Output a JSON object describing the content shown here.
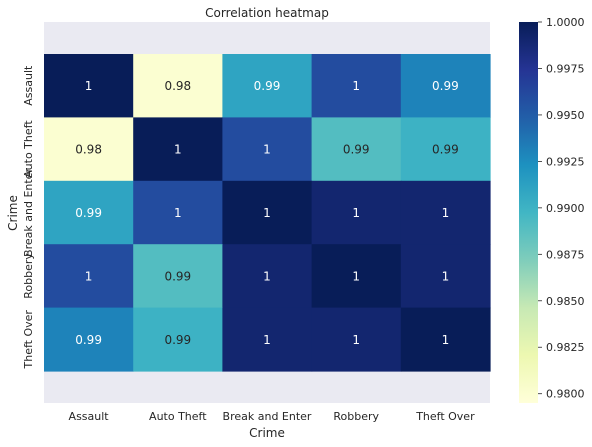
{
  "chart_data": {
    "type": "heatmap",
    "title": "Correlation heatmap",
    "xlabel": "Crime",
    "ylabel": "Crime",
    "x_categories": [
      "Assault",
      "Auto Theft",
      "Break and Enter",
      "Robbery",
      "Theft Over"
    ],
    "y_categories": [
      "Assault",
      "Auto Theft",
      "Break and Enter",
      "Robbery",
      "Theft Over"
    ],
    "values": [
      [
        1.0,
        0.98,
        0.991,
        0.996,
        0.993
      ],
      [
        0.98,
        1.0,
        0.996,
        0.989,
        0.99
      ],
      [
        0.991,
        0.996,
        1.0,
        0.999,
        0.999
      ],
      [
        0.996,
        0.989,
        0.999,
        1.0,
        0.999
      ],
      [
        0.993,
        0.99,
        0.999,
        0.999,
        1.0
      ]
    ],
    "annotations": [
      [
        "1",
        "0.98",
        "0.99",
        "1",
        "0.99"
      ],
      [
        "0.98",
        "1",
        "1",
        "0.99",
        "0.99"
      ],
      [
        "0.99",
        "1",
        "1",
        "1",
        "1"
      ],
      [
        "1",
        "0.99",
        "1",
        "1",
        "1"
      ],
      [
        "0.99",
        "0.99",
        "1",
        "1",
        "1"
      ]
    ],
    "vmin": 0.9795,
    "vmax": 1.0,
    "colormap": "YlGnBu",
    "colorbar_ticks": [
      "0.9800",
      "0.9825",
      "0.9850",
      "0.9875",
      "0.9900",
      "0.9925",
      "0.9950",
      "0.9975",
      "1.0000"
    ],
    "colors": {
      "background": "#eaeaf2",
      "annotation_light": "#262626",
      "annotation_dark": "#ffffff"
    }
  }
}
